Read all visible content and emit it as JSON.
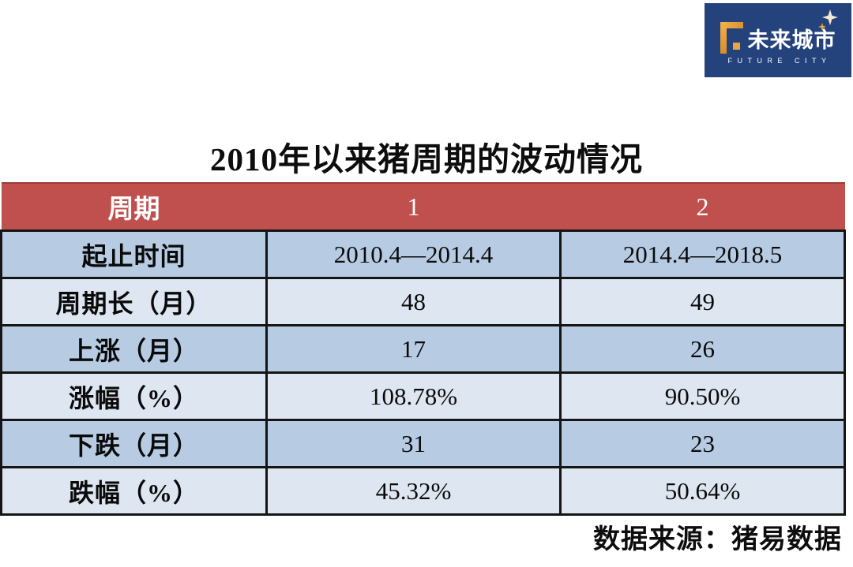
{
  "logo": {
    "brand_cn": "未来城市",
    "brand_en": "FUTURE CITY",
    "bg_color": "#24437C",
    "accent_color": "#E9A63F"
  },
  "colors": {
    "header_bg": "#C0504D",
    "header_text": "#FFFFFF",
    "row_blue": "#B7CBE3",
    "row_light": "#DEE6F1",
    "border": "#151515"
  },
  "chart_data": {
    "type": "table",
    "title": "2010年以来猪周期的波动情况",
    "columns": [
      "周期",
      "1",
      "2"
    ],
    "rows": [
      {
        "label": "起止时间",
        "values": [
          "2010.4—2014.4",
          "2014.4—2018.5"
        ]
      },
      {
        "label": "周期长（月）",
        "values": [
          "48",
          "49"
        ]
      },
      {
        "label": "上涨（月）",
        "values": [
          "17",
          "26"
        ]
      },
      {
        "label": "涨幅（%）",
        "values": [
          "108.78%",
          "90.50%"
        ]
      },
      {
        "label": "下跌（月）",
        "values": [
          "31",
          "23"
        ]
      },
      {
        "label": "跌幅（%）",
        "values": [
          "45.32%",
          "50.64%"
        ]
      }
    ],
    "source": "数据来源：猪易数据"
  }
}
